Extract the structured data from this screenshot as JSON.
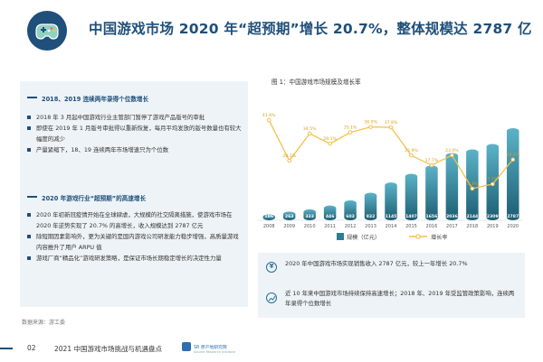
{
  "header": {
    "title": "中国游戏市场 2020 年“超预期”增长 20.7%，整体规模达 2787 亿"
  },
  "left_panel": {
    "section1_heading": "2018、2019 连续两年录得个位数增长",
    "section1_bullets": [
      "2018 年 3 月起中国游戏行业主管部门暂停了游戏产品版号的审批",
      "即使在 2019 年 1 月版号审批得以重新恢复，每月平均发放的版号数量也有较大幅度的减少",
      "产量紧缩下，18、19 连续两年市场增速只为个位数"
    ],
    "section2_heading": "2020 年游戏行业“超预期”的高速增长",
    "section2_bullets": [
      "2020 年初新冠疫情开始在全球肆虐，大规模的社交隔离措施，使游戏市场在 2020 年逆势实现了 20.7% 的高增长，收入规模达到 2787 亿元",
      "除短期因素影响外，更为关键的是国内游戏公司研发能力稳步增强，高质量游戏内容推升了用户 ARPU 值",
      "游戏厂商“精品化”游戏研发策略，是保证市场长期稳定增长的决定性力量"
    ],
    "data_source": "数据来源：游工委"
  },
  "chart_data": {
    "type": "bar",
    "title": "图 1：中国游戏市场规模及增长率",
    "categories": [
      "2008",
      "2009",
      "2010",
      "2011",
      "2012",
      "2013",
      "2014",
      "2015",
      "2016",
      "2017",
      "2018",
      "2019",
      "2020"
    ],
    "series": [
      {
        "name": "规模（亿元）",
        "type": "bar",
        "values": [
          186,
          263,
          333,
          446,
          603,
          832,
          1145,
          1407,
          1656,
          2036,
          2144,
          2309,
          2787
        ],
        "value_labels": [
          "186",
          "263",
          "333",
          "446",
          "603",
          "832",
          "1145",
          "1407",
          "1656",
          "2036",
          "2144",
          "2309",
          "2787"
        ]
      },
      {
        "name": "增长率",
        "type": "line",
        "values": [
          41.6,
          20.1,
          34.5,
          29.1,
          35.1,
          38.0,
          37.8,
          22.9,
          17.7,
          23.0,
          5.3,
          7.7,
          20.7
        ],
        "value_labels": [
          "41.6%",
          "20.1%",
          "34.5%",
          "29.1%",
          "35.1%",
          "38.0%",
          "37.8%",
          "22.9%",
          "17.7%",
          "23.0%",
          "5.3%",
          "7.7%",
          "20.7%"
        ]
      }
    ],
    "colors": {
      "bar_light": "#5bb3c8",
      "bar_dark": "#1d5d72",
      "line": "#f2c14e"
    },
    "legend": [
      "规模（亿元）",
      "增长率"
    ]
  },
  "info_boxes": [
    {
      "icon": "yuan-icon",
      "text": "2020 年中国游戏市场实现销售收入 2787 亿元，较上一年增长 20.7%"
    },
    {
      "icon": "chart-icon",
      "text": "近 10 年来中国游戏市场持续保持高速增长；2018 年、2019 年受监管政策影响，连续两年录得个位数增长"
    }
  ],
  "footer": {
    "page": "02",
    "title": "2021 中国游戏市场挑战与机遇盘点",
    "brand": "SR 原产地研究院",
    "brand_sub": "Source Research Institute"
  }
}
